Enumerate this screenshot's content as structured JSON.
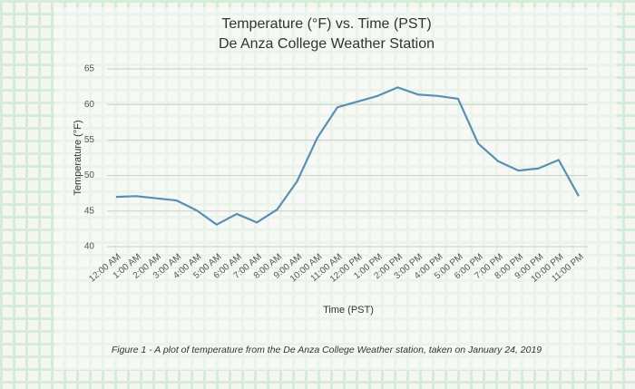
{
  "chart_data": {
    "type": "line",
    "title": "Temperature (°F) vs. Time (PST)",
    "subtitle": "De Anza College Weather Station",
    "x_label": "Time (PST)",
    "y_label": "Temperature (°F)",
    "caption": "Figure 1 - A plot of temperature from the De Anza College Weather station, taken on January 24, 2019",
    "categories": [
      "12:00 AM",
      "1:00 AM",
      "2:00 AM",
      "3:00 AM",
      "4:00 AM",
      "5:00 AM",
      "6:00 AM",
      "7:00 AM",
      "8:00 AM",
      "9:00 AM",
      "10:00 AM",
      "11:00 AM",
      "12:00 PM",
      "1:00 PM",
      "2:00 PM",
      "3:00 PM",
      "4:00 PM",
      "5:00 PM",
      "6:00 PM",
      "7:00 PM",
      "8:00 PM",
      "9:00 PM",
      "10:00 PM",
      "11:00 PM"
    ],
    "values": [
      47.0,
      47.1,
      46.8,
      46.5,
      45.1,
      43.1,
      44.6,
      43.4,
      45.2,
      49.2,
      55.3,
      59.6,
      60.4,
      61.2,
      62.4,
      61.4,
      61.2,
      60.8,
      54.5,
      52.0,
      50.7,
      51.0,
      52.2,
      47.1
    ],
    "color": "#5a8fb3",
    "ylim": [
      40,
      65
    ],
    "yticks": [
      40,
      45,
      50,
      55,
      60,
      65
    ],
    "grid": true
  }
}
